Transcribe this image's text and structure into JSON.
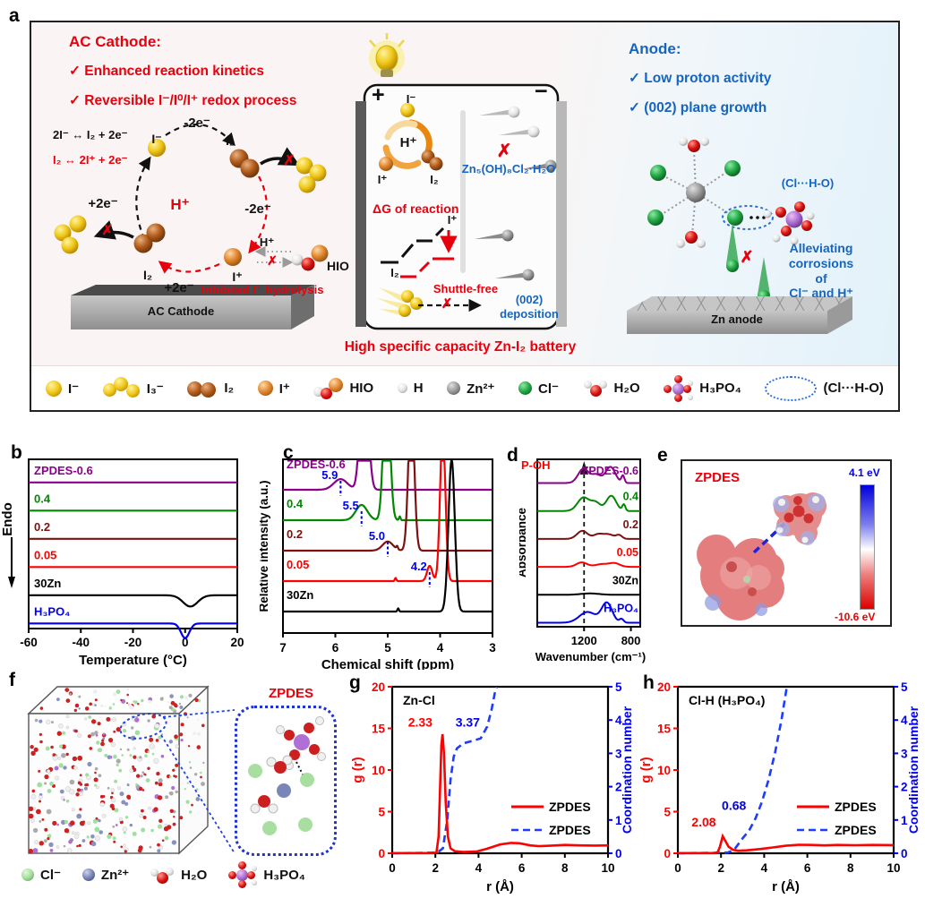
{
  "panel_labels": {
    "a": "a",
    "b": "b",
    "c": "c",
    "d": "d",
    "e": "e",
    "f": "f",
    "g": "g",
    "h": "h"
  },
  "panel_a": {
    "cross": "✗",
    "cathode": {
      "title": "AC Cathode:",
      "check1": "✓ Enhanced reaction kinetics",
      "check2": "✓ Reversible I⁻/I⁰/I⁺ redox process",
      "eq_black": "2I⁻ ↔ I₂ + 2e⁻",
      "eq_red": "I₂ ↔ 2I⁺ + 2e⁻",
      "i_minus": "I⁻",
      "minus2e_top": "-2e⁻",
      "i2_top": "I₂",
      "h_plus": "H⁺",
      "minus2e_right": "-2e⁻",
      "i_plus": "I⁺",
      "plus2e_left": "+2e⁻",
      "i2_bottom": "I₂",
      "plus2e_bottom": "+2e⁻",
      "inhibited": "Inhibited I⁺ hydrolysis",
      "h_plus_side": "H⁺",
      "hio": "HIO",
      "electrode": "AC Cathode"
    },
    "battery": {
      "plus": "+",
      "minus": "−",
      "i_minus": "I⁻",
      "h_plus": "H⁺",
      "i_plus": "I⁺",
      "i2": "I₂",
      "byproduct": "Zn₅(OH)₈Cl₂·H₂O",
      "dg": "ΔG of reaction",
      "dg_iplus": "I⁺",
      "dg_i2": "I₂",
      "shuttle": "Shuttle-free",
      "deposition": "(002)\ndeposition",
      "caption": "High specific capacity Zn-I₂ battery"
    },
    "anode": {
      "title": "Anode:",
      "check1": "✓ Low  proton activity",
      "check2": "✓ (002) plane growth",
      "clho": "(Cl···H-O)",
      "alleviating": "Alleviating\ncorrosions of\nCl⁻ and H⁺",
      "electrode": "Zn anode"
    },
    "legend": [
      {
        "label": "I⁻"
      },
      {
        "label": "I₃⁻"
      },
      {
        "label": "I₂"
      },
      {
        "label": "I⁺"
      },
      {
        "label": "HIO"
      },
      {
        "label": "H"
      },
      {
        "label": "Zn²⁺"
      },
      {
        "label": "Cl⁻"
      },
      {
        "label": "H₂O"
      },
      {
        "label": "H₃PO₄"
      },
      {
        "label": "(Cl···H-O)"
      }
    ]
  },
  "panel_e": {
    "title": "ZPDES",
    "cbar_top": "4.1 eV",
    "cbar_bottom": "-10.6 eV",
    "top_color": "#0000EE",
    "bottom_color": "#EE0000"
  },
  "panel_f": {
    "title": "ZPDES",
    "legend": [
      {
        "label": "Cl⁻"
      },
      {
        "label": "Zn²⁺"
      },
      {
        "label": "H₂O"
      },
      {
        "label": "H₃PO₄"
      }
    ]
  },
  "chart_data": [
    {
      "id": "b",
      "type": "line",
      "xlabel": "Temperature (°C)",
      "ylabel": "Endo",
      "xlim": [
        -60,
        20
      ],
      "xticks": [
        -60,
        -40,
        -20,
        0,
        20
      ],
      "series": [
        {
          "name": "ZPDES-0.6",
          "color": "#8B008B",
          "dips": []
        },
        {
          "name": "0.4",
          "color": "#008800",
          "dips": []
        },
        {
          "name": "0.2",
          "color": "#7E1010",
          "dips": []
        },
        {
          "name": "0.05",
          "color": "#FF0000",
          "dips": []
        },
        {
          "name": "30Zn",
          "color": "#000000",
          "dips": [
            {
              "x": 2,
              "depth": 0.4,
              "w": 2.8
            }
          ]
        },
        {
          "name": "H₃PO₄",
          "color": "#0000EE",
          "dips": [
            {
              "x": 0,
              "depth": 0.52,
              "w": 1.6
            }
          ]
        }
      ]
    },
    {
      "id": "c",
      "type": "line",
      "xlabel": "Chemical shift (ppm)",
      "ylabel": "Relative intensity (a.u.)",
      "xlim": [
        7,
        3
      ],
      "xticks": [
        7,
        6,
        5,
        4,
        3
      ],
      "annotation_color": "#0000EE",
      "annotations": [
        {
          "label": "5.9",
          "x": 5.9,
          "row": 0
        },
        {
          "label": "5.5",
          "x": 5.5,
          "row": 1
        },
        {
          "label": "5.0",
          "x": 5.0,
          "row": 2
        },
        {
          "label": "4.2",
          "x": 4.2,
          "row": 3
        }
      ],
      "series": [
        {
          "name": "ZPDES-0.6",
          "color": "#8B008B",
          "peaks": [
            {
              "x": 5.9,
              "h": 0.35,
              "w": 0.13
            },
            {
              "x": 5.45,
              "h": 5,
              "w": 0.07
            }
          ]
        },
        {
          "name": "0.4",
          "color": "#008800",
          "peaks": [
            {
              "x": 5.5,
              "h": 0.5,
              "w": 0.11
            },
            {
              "x": 5.02,
              "h": 5,
              "w": 0.06
            },
            {
              "x": 4.77,
              "h": 0.12,
              "w": 0.015
            }
          ]
        },
        {
          "name": "0.2",
          "color": "#7E1010",
          "peaks": [
            {
              "x": 5.0,
              "h": 0.3,
              "w": 0.1
            },
            {
              "x": 4.55,
              "h": 5,
              "w": 0.055
            },
            {
              "x": 4.82,
              "h": 0.1,
              "w": 0.015
            }
          ]
        },
        {
          "name": "0.05",
          "color": "#FF0000",
          "peaks": [
            {
              "x": 4.2,
              "h": 0.5,
              "w": 0.05
            },
            {
              "x": 3.95,
              "h": 5,
              "w": 0.05
            },
            {
              "x": 4.85,
              "h": 0.1,
              "w": 0.015
            }
          ]
        },
        {
          "name": "30Zn",
          "color": "#000000",
          "peaks": [
            {
              "x": 3.78,
              "h": 5,
              "w": 0.06
            },
            {
              "x": 4.8,
              "h": 0.1,
              "w": 0.015
            }
          ]
        }
      ]
    },
    {
      "id": "d",
      "type": "line",
      "xlabel": "Wavenumber (cm⁻¹)",
      "ylabel": "Absorbance",
      "xlim": [
        1600,
        720
      ],
      "xticks": [
        1200,
        800
      ],
      "marker_label": "P-OH",
      "marker_x": 1200,
      "marker_color": "#FF0000",
      "series": [
        {
          "name": "ZPDES-0.6",
          "color": "#8B008B",
          "peaks": [
            [
              1205,
              16,
              45
            ],
            [
              1095,
              9,
              40
            ],
            [
              975,
              18,
              42
            ],
            [
              868,
              8,
              13
            ]
          ]
        },
        {
          "name": "0.4",
          "color": "#008800",
          "peaks": [
            [
              1205,
              15,
              50
            ],
            [
              1100,
              9,
              40
            ],
            [
              968,
              17,
              42
            ],
            [
              860,
              7,
              13
            ]
          ]
        },
        {
          "name": "0.2",
          "color": "#7E1010",
          "peaks": [
            [
              1215,
              9,
              45
            ],
            [
              1080,
              5,
              40
            ],
            [
              990,
              5,
              45
            ],
            [
              900,
              4,
              25
            ]
          ]
        },
        {
          "name": "0.05",
          "color": "#FF0000",
          "peaks": [
            [
              1220,
              5,
              45
            ],
            [
              1050,
              3,
              55
            ],
            [
              940,
              4,
              45
            ]
          ]
        },
        {
          "name": "30Zn",
          "color": "#000000",
          "peaks": [
            [
              1150,
              1.5,
              80
            ]
          ]
        },
        {
          "name": "H₃PO₄",
          "color": "#0000EE",
          "peaks": [
            [
              1170,
              12,
              70
            ],
            [
              1005,
              22,
              45
            ],
            [
              880,
              4,
              18
            ]
          ]
        }
      ]
    },
    {
      "id": "g",
      "type": "line",
      "title": "Zn-Cl",
      "xlabel": "r (Å)",
      "ylabel_left": "g (r)",
      "ylabel_right": "Coordination number",
      "xlim": [
        0,
        10
      ],
      "xticks": [
        0,
        2,
        4,
        6,
        8,
        10
      ],
      "ylim_left": [
        0,
        20
      ],
      "yticks_left": [
        0,
        5,
        10,
        15,
        20
      ],
      "ylim_right": [
        0,
        5
      ],
      "yticks_right": [
        0,
        1,
        2,
        3,
        4,
        5
      ],
      "peak_annotation": {
        "label": "2.33",
        "x": 2.33
      },
      "cn_annotation": {
        "label": "3.37"
      },
      "legend": [
        {
          "name": "ZPDES",
          "style": "solid",
          "color": "#FF0000"
        },
        {
          "name": "ZPDES",
          "style": "dashed",
          "color": "#1E3CFF"
        }
      ],
      "g_of_r": [
        [
          0,
          0.02
        ],
        [
          1.9,
          0.02
        ],
        [
          2.05,
          0.1
        ],
        [
          2.15,
          2
        ],
        [
          2.22,
          8
        ],
        [
          2.28,
          13
        ],
        [
          2.33,
          14.3
        ],
        [
          2.4,
          12
        ],
        [
          2.48,
          6
        ],
        [
          2.58,
          2
        ],
        [
          2.7,
          0.6
        ],
        [
          2.9,
          0.25
        ],
        [
          3.3,
          0.15
        ],
        [
          3.9,
          0.2
        ],
        [
          4.4,
          0.55
        ],
        [
          5.0,
          1.05
        ],
        [
          5.5,
          1.25
        ],
        [
          5.9,
          1.2
        ],
        [
          6.4,
          0.95
        ],
        [
          6.8,
          0.85
        ],
        [
          7.3,
          0.9
        ],
        [
          8.0,
          1.0
        ],
        [
          8.7,
          0.95
        ],
        [
          9.4,
          0.92
        ],
        [
          10,
          0.95
        ]
      ],
      "coordination": [
        [
          0,
          0
        ],
        [
          2.1,
          0.02
        ],
        [
          2.35,
          0.15
        ],
        [
          2.55,
          1.0
        ],
        [
          2.7,
          2.2
        ],
        [
          2.85,
          2.9
        ],
        [
          3.0,
          3.15
        ],
        [
          3.3,
          3.3
        ],
        [
          3.7,
          3.37
        ],
        [
          4.1,
          3.45
        ],
        [
          4.4,
          3.8
        ],
        [
          4.6,
          4.3
        ],
        [
          4.75,
          4.8
        ],
        [
          4.85,
          5.0
        ]
      ]
    },
    {
      "id": "h",
      "type": "line",
      "title": "Cl-H (H₃PO₄)",
      "xlabel": "r (Å)",
      "ylabel_left": "g (r)",
      "ylabel_right": "Coordination number",
      "xlim": [
        0,
        10
      ],
      "xticks": [
        0,
        2,
        4,
        6,
        8,
        10
      ],
      "ylim_left": [
        0,
        20
      ],
      "yticks_left": [
        0,
        5,
        10,
        15,
        20
      ],
      "ylim_right": [
        0,
        5
      ],
      "yticks_right": [
        0,
        1,
        2,
        3,
        4,
        5
      ],
      "peak_annotation": {
        "label": "2.08",
        "x": 2.08
      },
      "cn_annotation": {
        "label": "0.68"
      },
      "legend": [
        {
          "name": "ZPDES",
          "style": "solid",
          "color": "#FF0000"
        },
        {
          "name": "ZPDES",
          "style": "dashed",
          "color": "#1E3CFF"
        }
      ],
      "g_of_r": [
        [
          0,
          0.02
        ],
        [
          1.7,
          0.02
        ],
        [
          1.85,
          0.15
        ],
        [
          1.95,
          0.8
        ],
        [
          2.08,
          2.05
        ],
        [
          2.2,
          1.5
        ],
        [
          2.35,
          0.8
        ],
        [
          2.55,
          0.42
        ],
        [
          2.8,
          0.3
        ],
        [
          3.2,
          0.35
        ],
        [
          3.8,
          0.5
        ],
        [
          4.4,
          0.7
        ],
        [
          5.0,
          0.9
        ],
        [
          5.6,
          1.02
        ],
        [
          6.2,
          1.0
        ],
        [
          6.8,
          0.95
        ],
        [
          7.4,
          1.0
        ],
        [
          8.2,
          0.97
        ],
        [
          9.0,
          1.0
        ],
        [
          10,
          0.98
        ]
      ],
      "coordination": [
        [
          0,
          0
        ],
        [
          2.3,
          0.02
        ],
        [
          2.6,
          0.1
        ],
        [
          3.0,
          0.45
        ],
        [
          3.3,
          0.68
        ],
        [
          3.6,
          1.05
        ],
        [
          3.9,
          1.55
        ],
        [
          4.2,
          2.2
        ],
        [
          4.5,
          3.0
        ],
        [
          4.8,
          4.0
        ],
        [
          5.0,
          4.8
        ],
        [
          5.05,
          5.0
        ]
      ]
    }
  ]
}
